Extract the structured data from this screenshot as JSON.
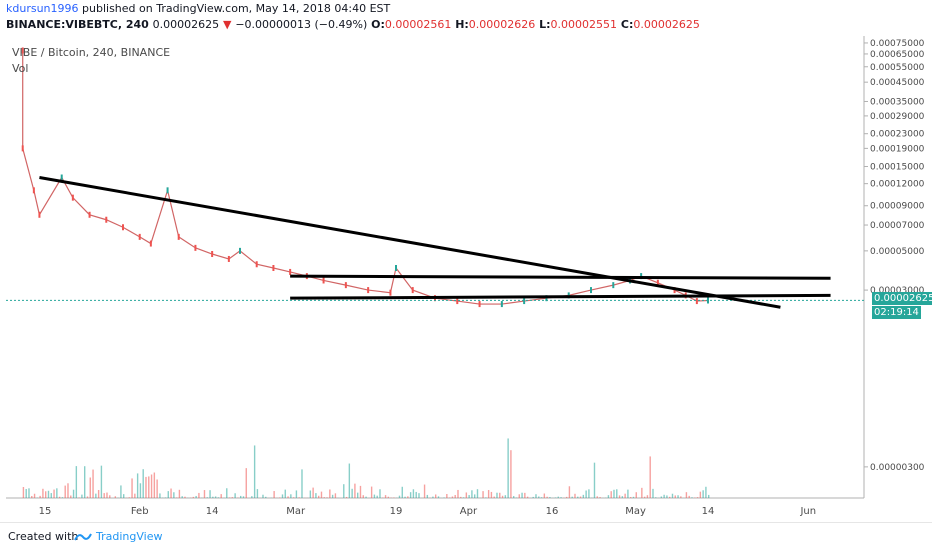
{
  "header": {
    "author": "kdursun1996",
    "published": "published on TradingView.com, May 14, 2018 04:40 EST",
    "symbol_line": "BINANCE:VIBEBTC, 240",
    "last": "0.00002625",
    "change_arrow": "▼",
    "change": "−0.00000013 (−0.49%)",
    "o_label": "O:",
    "o_val": "0.00002561",
    "h_label": "H:",
    "h_val": "0.00002626",
    "l_label": "L:",
    "l_val": "0.00002551",
    "c_label": "C:",
    "c_val": "0.00002625"
  },
  "pane": {
    "symbol_title": "VIBE / Bitcoin, 240, BINANCE",
    "vol_label": "Vol"
  },
  "price_marker": "0.00002625",
  "time_marker": "02:19:14",
  "footer": {
    "created_with": "Created with",
    "brand": "TradingView",
    "brand_icon": "tradingview-logo-icon"
  },
  "colors": {
    "up": "#26a69a",
    "down": "#ef5350",
    "trendline": "#000000",
    "brand": "#2196f3"
  },
  "chart_data": {
    "type": "line",
    "title": "VIBE / Bitcoin, 240, BINANCE",
    "y_axis_scale": "log",
    "y_ticks": [
      "0.00075000",
      "0.00065000",
      "0.00055000",
      "0.00045000",
      "0.00035000",
      "0.00029000",
      "0.00023000",
      "0.00019000",
      "0.00015000",
      "0.00012000",
      "0.00009000",
      "0.00007000",
      "0.00005000",
      "0.00003000",
      "0.00002625",
      "0.00000300"
    ],
    "x_ticks": [
      "15",
      "Feb",
      "14",
      "Mar",
      "19",
      "Apr",
      "16",
      "May",
      "14",
      "Jun"
    ],
    "series": [
      {
        "values": [
          0.00068,
          0.00019,
          0.00011,
          8e-05,
          0.00013,
          0.0001,
          8e-05,
          7.5e-05,
          6.8e-05,
          6e-05,
          5.5e-05,
          0.00011,
          6e-05,
          5.2e-05,
          4.8e-05,
          4.5e-05,
          5e-05,
          4.2e-05,
          4e-05,
          3.8e-05,
          3.6e-05,
          3.4e-05,
          3.2e-05,
          3e-05,
          2.9e-05,
          4e-05,
          3e-05,
          2.7e-05,
          2.6e-05,
          2.5e-05,
          2.5e-05,
          2.6e-05,
          2.7e-05,
          2.8e-05,
          3e-05,
          3.2e-05,
          3.4e-05,
          3.6e-05,
          3.3e-05,
          3e-05,
          2.8e-05,
          2.6e-05,
          2.62e-05
        ],
        "x": [
          "Jan 11",
          "Jan 11",
          "Jan 13",
          "Jan 14",
          "Jan 18",
          "Jan 20",
          "Jan 23",
          "Jan 26",
          "Jan 29",
          "Feb 1",
          "Feb 3",
          "Feb 6",
          "Feb 8",
          "Feb 11",
          "Feb 14",
          "Feb 17",
          "Feb 19",
          "Feb 22",
          "Feb 25",
          "Feb 28",
          "Mar 3",
          "Mar 6",
          "Mar 10",
          "Mar 14",
          "Mar 18",
          "Mar 19",
          "Mar 22",
          "Mar 26",
          "Mar 30",
          "Apr 3",
          "Apr 7",
          "Apr 11",
          "Apr 15",
          "Apr 19",
          "Apr 23",
          "Apr 27",
          "Apr 30",
          "May 2",
          "May 5",
          "May 8",
          "May 10",
          "May 12",
          "May 14"
        ]
      }
    ],
    "trendlines": [
      {
        "from": [
          "Jan 14",
          0.00013
        ],
        "to": [
          "May 27",
          2.4e-05
        ]
      },
      {
        "from": [
          "Feb 28",
          3.6e-05
        ],
        "to": [
          "Jun 5",
          3.5e-05
        ]
      },
      {
        "from": [
          "Feb 28",
          2.7e-05
        ],
        "to": [
          "Jun 5",
          2.8e-05
        ]
      }
    ]
  }
}
